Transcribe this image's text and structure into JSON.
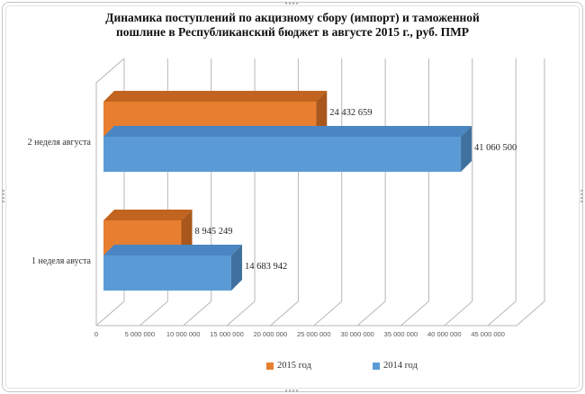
{
  "window": {
    "kind": "selected chart object",
    "selection_handles": [
      "top-center",
      "bottom-center",
      "left-center",
      "right-center"
    ]
  },
  "chart_data": {
    "type": "bar",
    "orientation": "horizontal",
    "style": "3d",
    "title_lines": [
      "Динамика поступлений по акцизному сбору (импорт) и таможенной",
      "пошлине в Республиканский бюджет в августе  2015 г., руб. ПМР"
    ],
    "categories": [
      "2 неделя августа",
      "1 неделя авуста"
    ],
    "series": [
      {
        "name": "2015 год",
        "values": [
          24432659,
          8945249
        ],
        "value_labels": [
          "24 432 659",
          "8 945 249"
        ],
        "color_front": "#E87E30",
        "color_top": "#C2641F",
        "color_side": "#A9571B"
      },
      {
        "name": "2014 год",
        "values": [
          41060500,
          14683942
        ],
        "value_labels": [
          "41 060 500",
          "14 683 942"
        ],
        "color_front": "#5B9BD5",
        "color_top": "#4A86C2",
        "color_side": "#40719E"
      }
    ],
    "x_axis": {
      "min": 0,
      "max": 45000000,
      "step": 5000000,
      "tick_labels": [
        "0",
        "5 000 000",
        "10 000 000",
        "15 000 000",
        "20 000 000",
        "25 000 000",
        "30 000 000",
        "35 000 000",
        "40 000 000",
        "45 000 000"
      ]
    },
    "grid": true,
    "legend_position": "bottom",
    "legend": [
      {
        "label": "2015 год",
        "color": "#E87E30"
      },
      {
        "label": "2014 год",
        "color": "#5B9BD5"
      }
    ],
    "line_color": "#b7b7b7"
  }
}
